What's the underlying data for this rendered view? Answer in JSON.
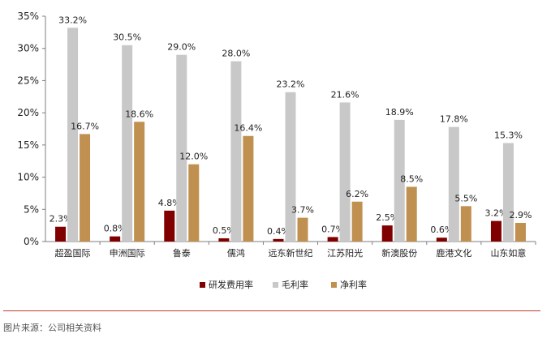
{
  "source_note": "图片来源：公司相关资料",
  "colors": {
    "series": [
      "#800000",
      "#c8c8c8",
      "#c09050"
    ],
    "axis": "#7f7f7f",
    "divider": "#c0392b"
  },
  "chart_data": {
    "type": "bar",
    "title": "",
    "xlabel": "",
    "ylabel": "",
    "ylim": [
      0,
      35
    ],
    "yticks": [
      "0%",
      "5%",
      "10%",
      "15%",
      "20%",
      "25%",
      "30%",
      "35%"
    ],
    "grid": false,
    "legend_position": "bottom",
    "categories": [
      "超盈国际",
      "申洲国际",
      "鲁泰",
      "儒鸿",
      "远东新世纪",
      "江苏阳光",
      "新澳股份",
      "鹿港文化",
      "山东如意"
    ],
    "series": [
      {
        "name": "研发费用率",
        "values": [
          2.3,
          0.8,
          4.8,
          0.5,
          0.4,
          0.7,
          2.5,
          0.6,
          3.2
        ],
        "labels": [
          "2.3%",
          "0.8%",
          "4.8%",
          "0.5%",
          "0.4%",
          "0.7%",
          "2.5%",
          "0.6%",
          "3.2%"
        ]
      },
      {
        "name": "毛利率",
        "values": [
          33.2,
          30.5,
          29.0,
          28.0,
          23.2,
          21.6,
          18.9,
          17.8,
          15.3
        ],
        "labels": [
          "33.2%",
          "30.5%",
          "29.0%",
          "28.0%",
          "23.2%",
          "21.6%",
          "18.9%",
          "17.8%",
          "15.3%"
        ]
      },
      {
        "name": "净利率",
        "values": [
          16.7,
          18.6,
          12.0,
          16.4,
          3.7,
          6.2,
          8.5,
          5.5,
          2.9
        ],
        "labels": [
          "16.7%",
          "18.6%",
          "12.0%",
          "16.4%",
          "3.7%",
          "6.2%",
          "8.5%",
          "5.5%",
          "2.9%"
        ]
      }
    ]
  }
}
